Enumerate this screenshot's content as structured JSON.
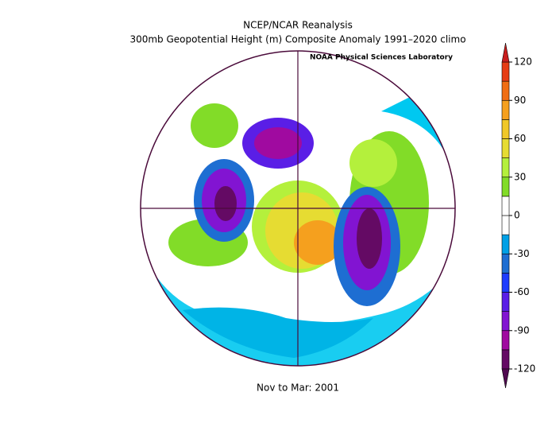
{
  "header": {
    "title": "NCEP/NCAR Reanalysis",
    "subtitle": "300mb Geopotential Height (m) Composite Anomaly 1991–2020 climo",
    "credit": "NOAA Physical Sciences Laboratory"
  },
  "footer": "Nov to Mar: 2001",
  "colorbar": {
    "range": [
      -120,
      120
    ],
    "ticks": [
      120,
      90,
      60,
      30,
      0,
      -30,
      -60,
      -90,
      -120
    ],
    "colors": [
      "#640a64",
      "#a00aa0",
      "#8214d2",
      "#5a1ee6",
      "#1e3cff",
      "#1e6ed2",
      "#00a0e6",
      "#ffffff",
      "#ffffff",
      "#82dc28",
      "#b4f03c",
      "#e6dc32",
      "#f0c828",
      "#f5a01e",
      "#f06e14",
      "#e63c14"
    ],
    "over_color": "#c81e1e",
    "under_color": "#500a50"
  }
}
